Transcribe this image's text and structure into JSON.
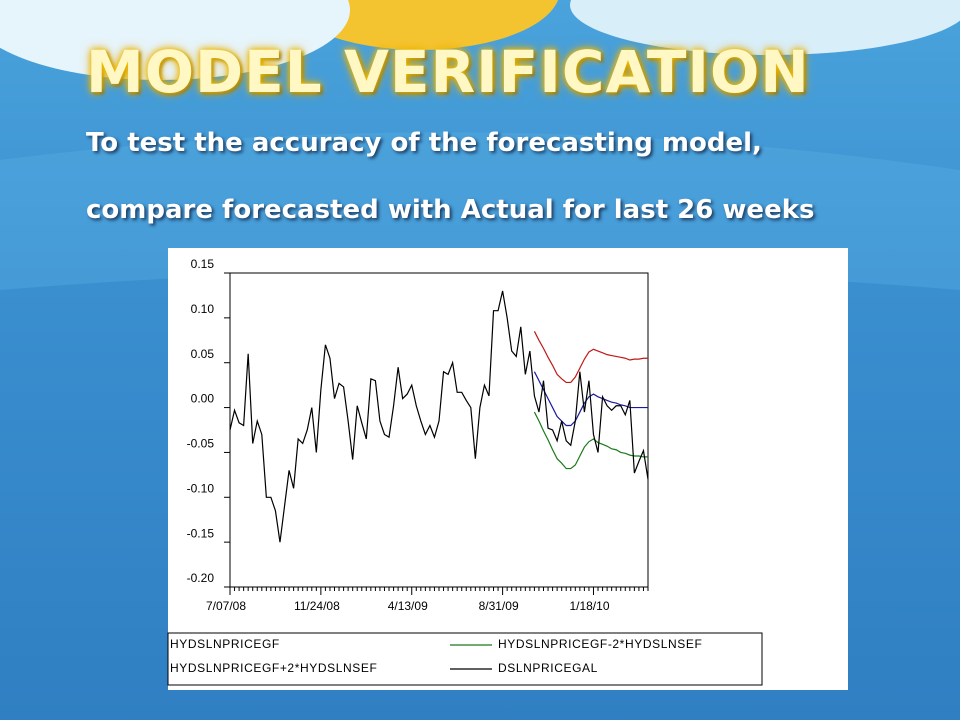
{
  "slide": {
    "title": "MODEL VERIFICATION",
    "subtitle_lines": [
      "To test the accuracy of the forecasting model,",
      "compare forecasted with Actual for last 26 weeks"
    ]
  },
  "chart_data": {
    "type": "line",
    "categories": [
      "7/07/08",
      null,
      null,
      null,
      null,
      null,
      null,
      null,
      null,
      null,
      null,
      null,
      null,
      null,
      null,
      null,
      null,
      null,
      null,
      null,
      "11/24/08",
      null,
      null,
      null,
      null,
      null,
      null,
      null,
      null,
      null,
      null,
      null,
      null,
      null,
      null,
      null,
      null,
      null,
      null,
      null,
      "4/13/09",
      null,
      null,
      null,
      null,
      null,
      null,
      null,
      null,
      null,
      null,
      null,
      null,
      null,
      null,
      null,
      null,
      null,
      null,
      null,
      "8/31/09",
      null,
      null,
      null,
      null,
      null,
      null,
      null,
      null,
      null,
      null,
      null,
      null,
      null,
      null,
      null,
      null,
      null,
      null,
      null,
      "1/18/10",
      null,
      null,
      null,
      null,
      null,
      null,
      null,
      null,
      null,
      null,
      null,
      null
    ],
    "ylim": [
      -0.2,
      0.15
    ],
    "yticks": [
      0.15,
      {
        "value": 0.1,
        "label": "0.10"
      },
      0.05,
      {
        "value": 0,
        "label": "0.00"
      },
      -0.05,
      {
        "value": -0.1,
        "label": "-0.10"
      },
      -0.15,
      {
        "value": -0.2,
        "label": "-0.20"
      }
    ],
    "legend_position": "bottom",
    "series": [
      {
        "name": "HYDSLNPRICEGF",
        "color": "#1a1aa0",
        "values": [
          null,
          null,
          null,
          null,
          null,
          null,
          null,
          null,
          null,
          null,
          null,
          null,
          null,
          null,
          null,
          null,
          null,
          null,
          null,
          null,
          null,
          null,
          null,
          null,
          null,
          null,
          null,
          null,
          null,
          null,
          null,
          null,
          null,
          null,
          null,
          null,
          null,
          null,
          null,
          null,
          null,
          null,
          null,
          null,
          null,
          null,
          null,
          null,
          null,
          null,
          null,
          null,
          null,
          null,
          null,
          null,
          null,
          null,
          null,
          null,
          null,
          null,
          null,
          null,
          null,
          null,
          null,
          0.04,
          0.03,
          0.02,
          0.01,
          0.0,
          -0.01,
          -0.015,
          -0.02,
          -0.02,
          -0.015,
          -0.005,
          0.005,
          0.012,
          0.015,
          0.012,
          0.01,
          0.008,
          0.006,
          0.005,
          0.003,
          0.002,
          0.0,
          0.0,
          0.0,
          0.0,
          0.0
        ]
      },
      {
        "name": "HYDSLNPRICEGF-2*HYDSLNSEF",
        "color": "#1a7a1a",
        "values": [
          null,
          null,
          null,
          null,
          null,
          null,
          null,
          null,
          null,
          null,
          null,
          null,
          null,
          null,
          null,
          null,
          null,
          null,
          null,
          null,
          null,
          null,
          null,
          null,
          null,
          null,
          null,
          null,
          null,
          null,
          null,
          null,
          null,
          null,
          null,
          null,
          null,
          null,
          null,
          null,
          null,
          null,
          null,
          null,
          null,
          null,
          null,
          null,
          null,
          null,
          null,
          null,
          null,
          null,
          null,
          null,
          null,
          null,
          null,
          null,
          null,
          null,
          null,
          null,
          null,
          null,
          null,
          -0.005,
          -0.015,
          -0.026,
          -0.036,
          -0.047,
          -0.057,
          -0.062,
          -0.068,
          -0.068,
          -0.064,
          -0.054,
          -0.044,
          -0.038,
          -0.035,
          -0.039,
          -0.041,
          -0.043,
          -0.046,
          -0.047,
          -0.05,
          -0.051,
          -0.053,
          -0.054,
          -0.054,
          -0.055,
          -0.055
        ]
      },
      {
        "name": "HYDSLNPRICEGF+2*HYDSLNSEF",
        "color": "#c01818",
        "values": [
          null,
          null,
          null,
          null,
          null,
          null,
          null,
          null,
          null,
          null,
          null,
          null,
          null,
          null,
          null,
          null,
          null,
          null,
          null,
          null,
          null,
          null,
          null,
          null,
          null,
          null,
          null,
          null,
          null,
          null,
          null,
          null,
          null,
          null,
          null,
          null,
          null,
          null,
          null,
          null,
          null,
          null,
          null,
          null,
          null,
          null,
          null,
          null,
          null,
          null,
          null,
          null,
          null,
          null,
          null,
          null,
          null,
          null,
          null,
          null,
          null,
          null,
          null,
          null,
          null,
          null,
          null,
          0.085,
          0.075,
          0.066,
          0.056,
          0.047,
          0.037,
          0.032,
          0.028,
          0.028,
          0.034,
          0.044,
          0.054,
          0.062,
          0.065,
          0.063,
          0.061,
          0.059,
          0.058,
          0.057,
          0.056,
          0.055,
          0.053,
          0.054,
          0.054,
          0.055,
          0.055
        ]
      },
      {
        "name": "DSLNPRICEGAL",
        "color": "#000000",
        "values": [
          -0.025,
          -0.003,
          -0.017,
          -0.02,
          0.06,
          -0.04,
          -0.015,
          -0.03,
          -0.1,
          -0.1,
          -0.115,
          -0.15,
          -0.11,
          -0.07,
          -0.09,
          -0.035,
          -0.04,
          -0.025,
          0.0,
          -0.05,
          0.02,
          0.07,
          0.055,
          0.01,
          0.027,
          0.023,
          -0.015,
          -0.058,
          0.002,
          -0.017,
          -0.035,
          0.032,
          0.03,
          -0.015,
          -0.03,
          -0.033,
          0.002,
          0.045,
          0.01,
          0.015,
          0.025,
          0.002,
          -0.015,
          -0.03,
          -0.02,
          -0.033,
          -0.015,
          0.04,
          0.037,
          0.05,
          0.017,
          0.017,
          0.008,
          0.0,
          -0.057,
          0.0,
          0.025,
          0.013,
          0.108,
          0.108,
          0.13,
          0.1,
          0.063,
          0.057,
          0.09,
          0.037,
          0.063,
          0.013,
          -0.005,
          0.03,
          -0.023,
          -0.025,
          -0.037,
          -0.015,
          -0.037,
          -0.042,
          -0.015,
          0.04,
          -0.005,
          0.03,
          -0.03,
          -0.05,
          0.012,
          0.002,
          -0.003,
          0.002,
          0.002,
          -0.008,
          0.008,
          -0.073,
          -0.06,
          -0.048,
          -0.08
        ]
      }
    ]
  }
}
